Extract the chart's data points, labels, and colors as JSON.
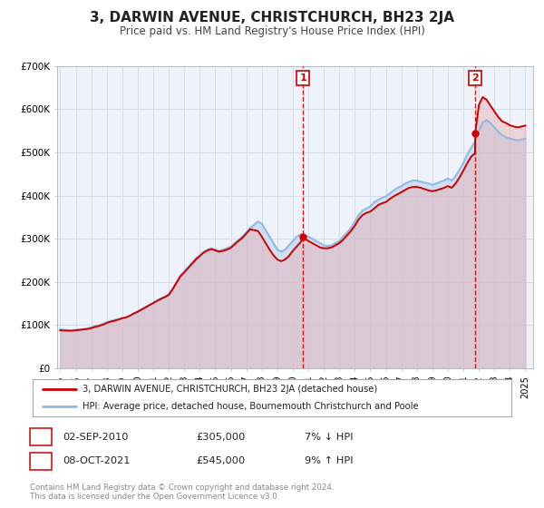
{
  "title": "3, DARWIN AVENUE, CHRISTCHURCH, BH23 2JA",
  "subtitle": "Price paid vs. HM Land Registry's House Price Index (HPI)",
  "bg_color": "#ffffff",
  "plot_bg_color": "#eef2fa",
  "grid_color": "#d8dce8",
  "hpi_color": "#90b8e0",
  "hpi_fill_color": "#b8d0ec",
  "price_color": "#cc0000",
  "price_fill_color": "#e8b0b0",
  "ylim": [
    0,
    700000
  ],
  "yticks": [
    0,
    100000,
    200000,
    300000,
    400000,
    500000,
    600000,
    700000
  ],
  "ytick_labels": [
    "£0",
    "£100K",
    "£200K",
    "£300K",
    "£400K",
    "£500K",
    "£600K",
    "£700K"
  ],
  "xlim_start": 1994.8,
  "xlim_end": 2025.5,
  "sale1_year": 2010.67,
  "sale1_price": 305000,
  "sale2_year": 2021.77,
  "sale2_price": 545000,
  "legend_line1": "3, DARWIN AVENUE, CHRISTCHURCH, BH23 2JA (detached house)",
  "legend_line2": "HPI: Average price, detached house, Bournemouth Christchurch and Poole",
  "annotation1_label": "1",
  "annotation1_date": "02-SEP-2010",
  "annotation1_price": "£305,000",
  "annotation1_hpi": "7% ↓ HPI",
  "annotation2_label": "2",
  "annotation2_date": "08-OCT-2021",
  "annotation2_price": "£545,000",
  "annotation2_hpi": "9% ↑ HPI",
  "footer1": "Contains HM Land Registry data © Crown copyright and database right 2024.",
  "footer2": "This data is licensed under the Open Government Licence v3.0.",
  "hpi_data": [
    [
      1995.0,
      90000
    ],
    [
      1995.25,
      89000
    ],
    [
      1995.5,
      88500
    ],
    [
      1995.75,
      88000
    ],
    [
      1996.0,
      89000
    ],
    [
      1996.25,
      90000
    ],
    [
      1996.5,
      91000
    ],
    [
      1996.75,
      92000
    ],
    [
      1997.0,
      95000
    ],
    [
      1997.25,
      98000
    ],
    [
      1997.5,
      100000
    ],
    [
      1997.75,
      103000
    ],
    [
      1998.0,
      107000
    ],
    [
      1998.25,
      110000
    ],
    [
      1998.5,
      112000
    ],
    [
      1998.75,
      114000
    ],
    [
      1999.0,
      116000
    ],
    [
      1999.25,
      118000
    ],
    [
      1999.5,
      122000
    ],
    [
      1999.75,
      127000
    ],
    [
      2000.0,
      132000
    ],
    [
      2000.25,
      137000
    ],
    [
      2000.5,
      142000
    ],
    [
      2000.75,
      147000
    ],
    [
      2001.0,
      152000
    ],
    [
      2001.25,
      158000
    ],
    [
      2001.5,
      162000
    ],
    [
      2001.75,
      166000
    ],
    [
      2002.0,
      172000
    ],
    [
      2002.25,
      185000
    ],
    [
      2002.5,
      200000
    ],
    [
      2002.75,
      215000
    ],
    [
      2003.0,
      225000
    ],
    [
      2003.25,
      235000
    ],
    [
      2003.5,
      245000
    ],
    [
      2003.75,
      255000
    ],
    [
      2004.0,
      262000
    ],
    [
      2004.25,
      270000
    ],
    [
      2004.5,
      275000
    ],
    [
      2004.75,
      278000
    ],
    [
      2005.0,
      275000
    ],
    [
      2005.25,
      272000
    ],
    [
      2005.5,
      275000
    ],
    [
      2005.75,
      278000
    ],
    [
      2006.0,
      282000
    ],
    [
      2006.25,
      290000
    ],
    [
      2006.5,
      298000
    ],
    [
      2006.75,
      305000
    ],
    [
      2007.0,
      315000
    ],
    [
      2007.25,
      325000
    ],
    [
      2007.5,
      332000
    ],
    [
      2007.75,
      340000
    ],
    [
      2008.0,
      335000
    ],
    [
      2008.25,
      320000
    ],
    [
      2008.5,
      305000
    ],
    [
      2008.75,
      290000
    ],
    [
      2009.0,
      275000
    ],
    [
      2009.25,
      270000
    ],
    [
      2009.5,
      275000
    ],
    [
      2009.75,
      285000
    ],
    [
      2010.0,
      295000
    ],
    [
      2010.25,
      305000
    ],
    [
      2010.5,
      310000
    ],
    [
      2010.75,
      308000
    ],
    [
      2011.0,
      305000
    ],
    [
      2011.25,
      300000
    ],
    [
      2011.5,
      295000
    ],
    [
      2011.75,
      290000
    ],
    [
      2012.0,
      285000
    ],
    [
      2012.25,
      283000
    ],
    [
      2012.5,
      285000
    ],
    [
      2012.75,
      290000
    ],
    [
      2013.0,
      295000
    ],
    [
      2013.25,
      305000
    ],
    [
      2013.5,
      315000
    ],
    [
      2013.75,
      325000
    ],
    [
      2014.0,
      340000
    ],
    [
      2014.25,
      355000
    ],
    [
      2014.5,
      365000
    ],
    [
      2014.75,
      370000
    ],
    [
      2015.0,
      375000
    ],
    [
      2015.25,
      385000
    ],
    [
      2015.5,
      390000
    ],
    [
      2015.75,
      395000
    ],
    [
      2016.0,
      398000
    ],
    [
      2016.25,
      405000
    ],
    [
      2016.5,
      412000
    ],
    [
      2016.75,
      418000
    ],
    [
      2017.0,
      422000
    ],
    [
      2017.25,
      428000
    ],
    [
      2017.5,
      432000
    ],
    [
      2017.75,
      435000
    ],
    [
      2018.0,
      435000
    ],
    [
      2018.25,
      432000
    ],
    [
      2018.5,
      430000
    ],
    [
      2018.75,
      428000
    ],
    [
      2019.0,
      425000
    ],
    [
      2019.25,
      428000
    ],
    [
      2019.5,
      432000
    ],
    [
      2019.75,
      435000
    ],
    [
      2020.0,
      440000
    ],
    [
      2020.25,
      435000
    ],
    [
      2020.5,
      445000
    ],
    [
      2020.75,
      460000
    ],
    [
      2021.0,
      475000
    ],
    [
      2021.25,
      495000
    ],
    [
      2021.5,
      510000
    ],
    [
      2021.75,
      525000
    ],
    [
      2022.0,
      550000
    ],
    [
      2022.25,
      570000
    ],
    [
      2022.5,
      575000
    ],
    [
      2022.75,
      568000
    ],
    [
      2023.0,
      558000
    ],
    [
      2023.25,
      548000
    ],
    [
      2023.5,
      540000
    ],
    [
      2023.75,
      535000
    ],
    [
      2024.0,
      532000
    ],
    [
      2024.25,
      530000
    ],
    [
      2024.5,
      528000
    ],
    [
      2024.75,
      530000
    ],
    [
      2025.0,
      532000
    ]
  ],
  "price_data": [
    [
      1995.0,
      88000
    ],
    [
      1995.25,
      87500
    ],
    [
      1995.5,
      87000
    ],
    [
      1995.75,
      87000
    ],
    [
      1996.0,
      88000
    ],
    [
      1996.25,
      89000
    ],
    [
      1996.5,
      90000
    ],
    [
      1996.75,
      91000
    ],
    [
      1997.0,
      93000
    ],
    [
      1997.25,
      96000
    ],
    [
      1997.5,
      98000
    ],
    [
      1997.75,
      101000
    ],
    [
      1998.0,
      105000
    ],
    [
      1998.25,
      108000
    ],
    [
      1998.5,
      110000
    ],
    [
      1998.75,
      113000
    ],
    [
      1999.0,
      116000
    ],
    [
      1999.25,
      118000
    ],
    [
      1999.5,
      122000
    ],
    [
      1999.75,
      127000
    ],
    [
      2000.0,
      131000
    ],
    [
      2000.25,
      136000
    ],
    [
      2000.5,
      141000
    ],
    [
      2000.75,
      146000
    ],
    [
      2001.0,
      151000
    ],
    [
      2001.25,
      156000
    ],
    [
      2001.5,
      161000
    ],
    [
      2001.75,
      165000
    ],
    [
      2002.0,
      170000
    ],
    [
      2002.25,
      183000
    ],
    [
      2002.5,
      198000
    ],
    [
      2002.75,
      213000
    ],
    [
      2003.0,
      222000
    ],
    [
      2003.25,
      232000
    ],
    [
      2003.5,
      242000
    ],
    [
      2003.75,
      252000
    ],
    [
      2004.0,
      260000
    ],
    [
      2004.25,
      268000
    ],
    [
      2004.5,
      273000
    ],
    [
      2004.75,
      276000
    ],
    [
      2005.0,
      273000
    ],
    [
      2005.25,
      270000
    ],
    [
      2005.5,
      272000
    ],
    [
      2005.75,
      275000
    ],
    [
      2006.0,
      279000
    ],
    [
      2006.25,
      287000
    ],
    [
      2006.5,
      295000
    ],
    [
      2006.75,
      302000
    ],
    [
      2007.0,
      312000
    ],
    [
      2007.25,
      322000
    ],
    [
      2007.5,
      320000
    ],
    [
      2007.75,
      318000
    ],
    [
      2008.0,
      305000
    ],
    [
      2008.25,
      290000
    ],
    [
      2008.5,
      275000
    ],
    [
      2008.75,
      262000
    ],
    [
      2009.0,
      252000
    ],
    [
      2009.25,
      248000
    ],
    [
      2009.5,
      252000
    ],
    [
      2009.75,
      260000
    ],
    [
      2010.0,
      272000
    ],
    [
      2010.25,
      282000
    ],
    [
      2010.5,
      292000
    ],
    [
      2010.67,
      305000
    ],
    [
      2010.75,
      300000
    ],
    [
      2011.0,
      295000
    ],
    [
      2011.25,
      290000
    ],
    [
      2011.5,
      285000
    ],
    [
      2011.75,
      280000
    ],
    [
      2012.0,
      278000
    ],
    [
      2012.25,
      278000
    ],
    [
      2012.5,
      280000
    ],
    [
      2012.75,
      285000
    ],
    [
      2013.0,
      290000
    ],
    [
      2013.25,
      298000
    ],
    [
      2013.5,
      308000
    ],
    [
      2013.75,
      318000
    ],
    [
      2014.0,
      330000
    ],
    [
      2014.25,
      345000
    ],
    [
      2014.5,
      355000
    ],
    [
      2014.75,
      360000
    ],
    [
      2015.0,
      363000
    ],
    [
      2015.25,
      370000
    ],
    [
      2015.5,
      378000
    ],
    [
      2015.75,
      382000
    ],
    [
      2016.0,
      385000
    ],
    [
      2016.25,
      392000
    ],
    [
      2016.5,
      398000
    ],
    [
      2016.75,
      403000
    ],
    [
      2017.0,
      408000
    ],
    [
      2017.25,
      413000
    ],
    [
      2017.5,
      418000
    ],
    [
      2017.75,
      420000
    ],
    [
      2018.0,
      420000
    ],
    [
      2018.25,
      418000
    ],
    [
      2018.5,
      415000
    ],
    [
      2018.75,
      412000
    ],
    [
      2019.0,
      410000
    ],
    [
      2019.25,
      412000
    ],
    [
      2019.5,
      415000
    ],
    [
      2019.75,
      418000
    ],
    [
      2020.0,
      422000
    ],
    [
      2020.25,
      418000
    ],
    [
      2020.5,
      428000
    ],
    [
      2020.75,
      442000
    ],
    [
      2021.0,
      458000
    ],
    [
      2021.25,
      475000
    ],
    [
      2021.5,
      490000
    ],
    [
      2021.75,
      498000
    ],
    [
      2021.77,
      545000
    ],
    [
      2022.0,
      610000
    ],
    [
      2022.25,
      628000
    ],
    [
      2022.5,
      622000
    ],
    [
      2022.75,
      608000
    ],
    [
      2023.0,
      595000
    ],
    [
      2023.25,
      582000
    ],
    [
      2023.5,
      572000
    ],
    [
      2023.75,
      568000
    ],
    [
      2024.0,
      563000
    ],
    [
      2024.25,
      560000
    ],
    [
      2024.5,
      558000
    ],
    [
      2024.75,
      560000
    ],
    [
      2025.0,
      562000
    ]
  ]
}
